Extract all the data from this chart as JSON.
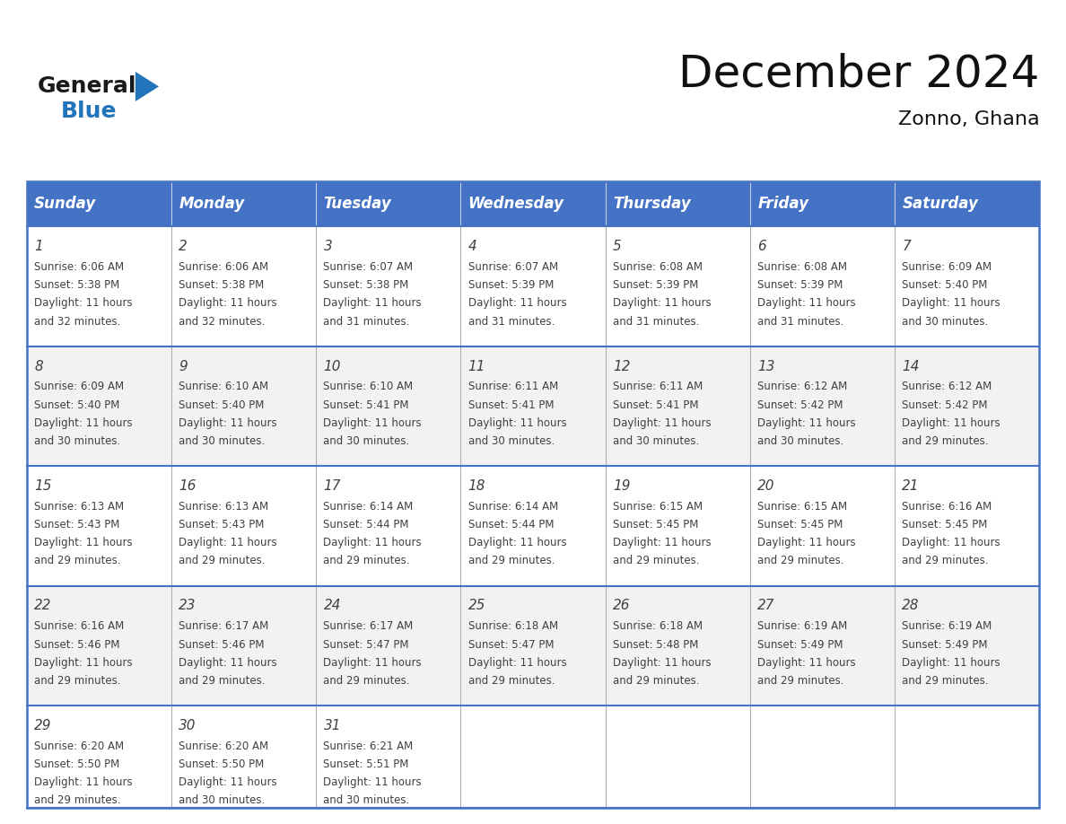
{
  "title": "December 2024",
  "subtitle": "Zonno, Ghana",
  "days_of_week": [
    "Sunday",
    "Monday",
    "Tuesday",
    "Wednesday",
    "Thursday",
    "Friday",
    "Saturday"
  ],
  "header_bg": "#4472C4",
  "header_text": "#FFFFFF",
  "cell_bg_even": "#FFFFFF",
  "cell_bg_odd": "#F2F2F2",
  "border_color": "#4472C4",
  "grid_color": "#AAAAAA",
  "text_color": "#404040",
  "calendar_data": [
    [
      {
        "day": 1,
        "sunrise": "6:06 AM",
        "sunset": "5:38 PM",
        "daylight_hours": 11,
        "daylight_mins": 32
      },
      {
        "day": 2,
        "sunrise": "6:06 AM",
        "sunset": "5:38 PM",
        "daylight_hours": 11,
        "daylight_mins": 32
      },
      {
        "day": 3,
        "sunrise": "6:07 AM",
        "sunset": "5:38 PM",
        "daylight_hours": 11,
        "daylight_mins": 31
      },
      {
        "day": 4,
        "sunrise": "6:07 AM",
        "sunset": "5:39 PM",
        "daylight_hours": 11,
        "daylight_mins": 31
      },
      {
        "day": 5,
        "sunrise": "6:08 AM",
        "sunset": "5:39 PM",
        "daylight_hours": 11,
        "daylight_mins": 31
      },
      {
        "day": 6,
        "sunrise": "6:08 AM",
        "sunset": "5:39 PM",
        "daylight_hours": 11,
        "daylight_mins": 31
      },
      {
        "day": 7,
        "sunrise": "6:09 AM",
        "sunset": "5:40 PM",
        "daylight_hours": 11,
        "daylight_mins": 30
      }
    ],
    [
      {
        "day": 8,
        "sunrise": "6:09 AM",
        "sunset": "5:40 PM",
        "daylight_hours": 11,
        "daylight_mins": 30
      },
      {
        "day": 9,
        "sunrise": "6:10 AM",
        "sunset": "5:40 PM",
        "daylight_hours": 11,
        "daylight_mins": 30
      },
      {
        "day": 10,
        "sunrise": "6:10 AM",
        "sunset": "5:41 PM",
        "daylight_hours": 11,
        "daylight_mins": 30
      },
      {
        "day": 11,
        "sunrise": "6:11 AM",
        "sunset": "5:41 PM",
        "daylight_hours": 11,
        "daylight_mins": 30
      },
      {
        "day": 12,
        "sunrise": "6:11 AM",
        "sunset": "5:41 PM",
        "daylight_hours": 11,
        "daylight_mins": 30
      },
      {
        "day": 13,
        "sunrise": "6:12 AM",
        "sunset": "5:42 PM",
        "daylight_hours": 11,
        "daylight_mins": 30
      },
      {
        "day": 14,
        "sunrise": "6:12 AM",
        "sunset": "5:42 PM",
        "daylight_hours": 11,
        "daylight_mins": 29
      }
    ],
    [
      {
        "day": 15,
        "sunrise": "6:13 AM",
        "sunset": "5:43 PM",
        "daylight_hours": 11,
        "daylight_mins": 29
      },
      {
        "day": 16,
        "sunrise": "6:13 AM",
        "sunset": "5:43 PM",
        "daylight_hours": 11,
        "daylight_mins": 29
      },
      {
        "day": 17,
        "sunrise": "6:14 AM",
        "sunset": "5:44 PM",
        "daylight_hours": 11,
        "daylight_mins": 29
      },
      {
        "day": 18,
        "sunrise": "6:14 AM",
        "sunset": "5:44 PM",
        "daylight_hours": 11,
        "daylight_mins": 29
      },
      {
        "day": 19,
        "sunrise": "6:15 AM",
        "sunset": "5:45 PM",
        "daylight_hours": 11,
        "daylight_mins": 29
      },
      {
        "day": 20,
        "sunrise": "6:15 AM",
        "sunset": "5:45 PM",
        "daylight_hours": 11,
        "daylight_mins": 29
      },
      {
        "day": 21,
        "sunrise": "6:16 AM",
        "sunset": "5:45 PM",
        "daylight_hours": 11,
        "daylight_mins": 29
      }
    ],
    [
      {
        "day": 22,
        "sunrise": "6:16 AM",
        "sunset": "5:46 PM",
        "daylight_hours": 11,
        "daylight_mins": 29
      },
      {
        "day": 23,
        "sunrise": "6:17 AM",
        "sunset": "5:46 PM",
        "daylight_hours": 11,
        "daylight_mins": 29
      },
      {
        "day": 24,
        "sunrise": "6:17 AM",
        "sunset": "5:47 PM",
        "daylight_hours": 11,
        "daylight_mins": 29
      },
      {
        "day": 25,
        "sunrise": "6:18 AM",
        "sunset": "5:47 PM",
        "daylight_hours": 11,
        "daylight_mins": 29
      },
      {
        "day": 26,
        "sunrise": "6:18 AM",
        "sunset": "5:48 PM",
        "daylight_hours": 11,
        "daylight_mins": 29
      },
      {
        "day": 27,
        "sunrise": "6:19 AM",
        "sunset": "5:49 PM",
        "daylight_hours": 11,
        "daylight_mins": 29
      },
      {
        "day": 28,
        "sunrise": "6:19 AM",
        "sunset": "5:49 PM",
        "daylight_hours": 11,
        "daylight_mins": 29
      }
    ],
    [
      {
        "day": 29,
        "sunrise": "6:20 AM",
        "sunset": "5:50 PM",
        "daylight_hours": 11,
        "daylight_mins": 29
      },
      {
        "day": 30,
        "sunrise": "6:20 AM",
        "sunset": "5:50 PM",
        "daylight_hours": 11,
        "daylight_mins": 30
      },
      {
        "day": 31,
        "sunrise": "6:21 AM",
        "sunset": "5:51 PM",
        "daylight_hours": 11,
        "daylight_mins": 30
      },
      null,
      null,
      null,
      null
    ]
  ],
  "logo_general_color": "#1a1a1a",
  "logo_blue_color": "#2275BB",
  "logo_triangle_color": "#2275BB",
  "title_fontsize": 36,
  "subtitle_fontsize": 16,
  "header_fontsize": 12,
  "day_num_fontsize": 11,
  "cell_text_fontsize": 8.5
}
